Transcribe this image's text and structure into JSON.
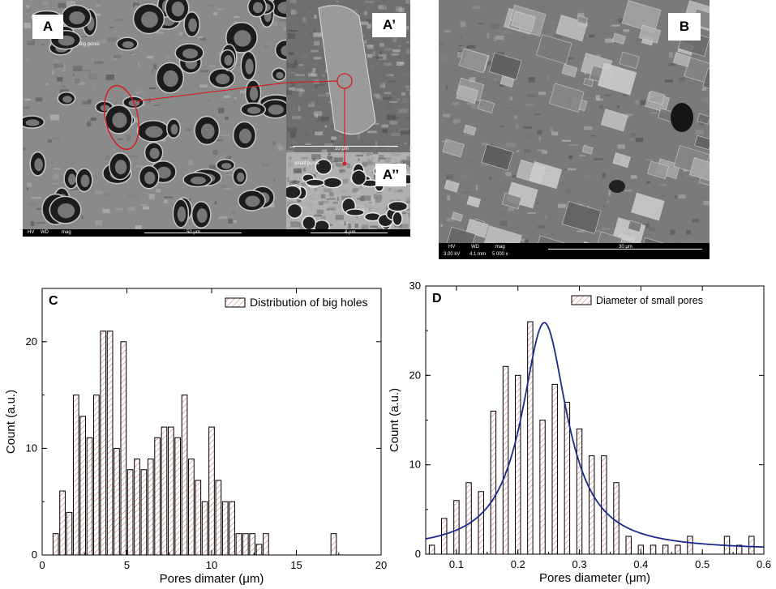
{
  "panels": {
    "A": {
      "label": "A",
      "overlay_text": "big pores",
      "bar": {
        "hv": "HV",
        "wd": "WD",
        "mag": "mag",
        "scale": "50 μm"
      }
    },
    "A1": {
      "label": "A’",
      "scale": "10 μm"
    },
    "A2": {
      "label": "A’’",
      "overlay_text": "small pores",
      "scale": "4 μm"
    },
    "B": {
      "label": "B",
      "bar": {
        "hv": "HV",
        "hv_val": "3.00 kV",
        "wd": "WD",
        "wd_val": "4.1 mm",
        "mag": "mag",
        "mag_val": "5 000 x",
        "scale": "30 μm"
      }
    }
  },
  "chart_data": [
    {
      "panel_label": "C",
      "type": "bar",
      "xlabel": "Pores dimater (μm)",
      "ylabel": "Count (a.u.)",
      "xlim": [
        0,
        20
      ],
      "ylim": [
        0,
        25
      ],
      "xticks": [
        0,
        5,
        10,
        15,
        20
      ],
      "yticks": [
        0,
        10,
        20
      ],
      "legend": {
        "label": "Distribution of big holes",
        "position": "top-right"
      },
      "bar_color": "#d27d7d",
      "series": [
        {
          "name": "Distribution of big holes",
          "x": [
            0.8,
            1.2,
            1.6,
            2.0,
            2.4,
            2.8,
            3.2,
            3.6,
            4.0,
            4.4,
            4.8,
            5.2,
            5.6,
            6.0,
            6.4,
            6.8,
            7.2,
            7.6,
            8.0,
            8.4,
            8.8,
            9.2,
            9.6,
            10.0,
            10.4,
            10.8,
            11.2,
            11.6,
            12.0,
            12.4,
            12.8,
            13.2,
            13.6,
            14.0,
            14.4,
            14.8,
            15.2,
            15.6,
            16.0,
            16.4,
            17.2
          ],
          "values": [
            2,
            6,
            4,
            15,
            13,
            11,
            15,
            21,
            21,
            10,
            20,
            8,
            9,
            8,
            9,
            11,
            12,
            12,
            11,
            15,
            9,
            7,
            5,
            12,
            7,
            5,
            5,
            2,
            2,
            2,
            1,
            2,
            0,
            0,
            0,
            0,
            0,
            0,
            0,
            0,
            2
          ]
        }
      ]
    },
    {
      "panel_label": "D",
      "type": "bar",
      "xlabel": "Pores diameter (μm)",
      "ylabel": "Count (a.u.)",
      "xlim": [
        0.05,
        0.6
      ],
      "ylim": [
        0,
        30
      ],
      "xticks": [
        0.1,
        0.2,
        0.3,
        0.4,
        0.5,
        0.6
      ],
      "yticks": [
        0,
        10,
        20,
        30
      ],
      "legend": {
        "label": "Diameter of small pores",
        "position": "top-right"
      },
      "bar_color": "#d27d7d",
      "fit_color": "#1a2a8a",
      "fit": {
        "type": "lorentzian",
        "center": 0.243,
        "amplitude": 25.5,
        "hwhm": 0.045,
        "offset": 0.4
      },
      "series": [
        {
          "name": "Diameter of small pores",
          "x": [
            0.06,
            0.08,
            0.1,
            0.12,
            0.14,
            0.16,
            0.18,
            0.2,
            0.22,
            0.24,
            0.26,
            0.28,
            0.3,
            0.32,
            0.34,
            0.36,
            0.38,
            0.4,
            0.42,
            0.44,
            0.46,
            0.48,
            0.54,
            0.56,
            0.58
          ],
          "values": [
            1,
            4,
            6,
            8,
            7,
            16,
            21,
            20,
            26,
            15,
            19,
            17,
            14,
            11,
            11,
            8,
            2,
            1,
            1,
            1,
            1,
            2,
            2,
            1,
            2
          ]
        }
      ]
    }
  ]
}
